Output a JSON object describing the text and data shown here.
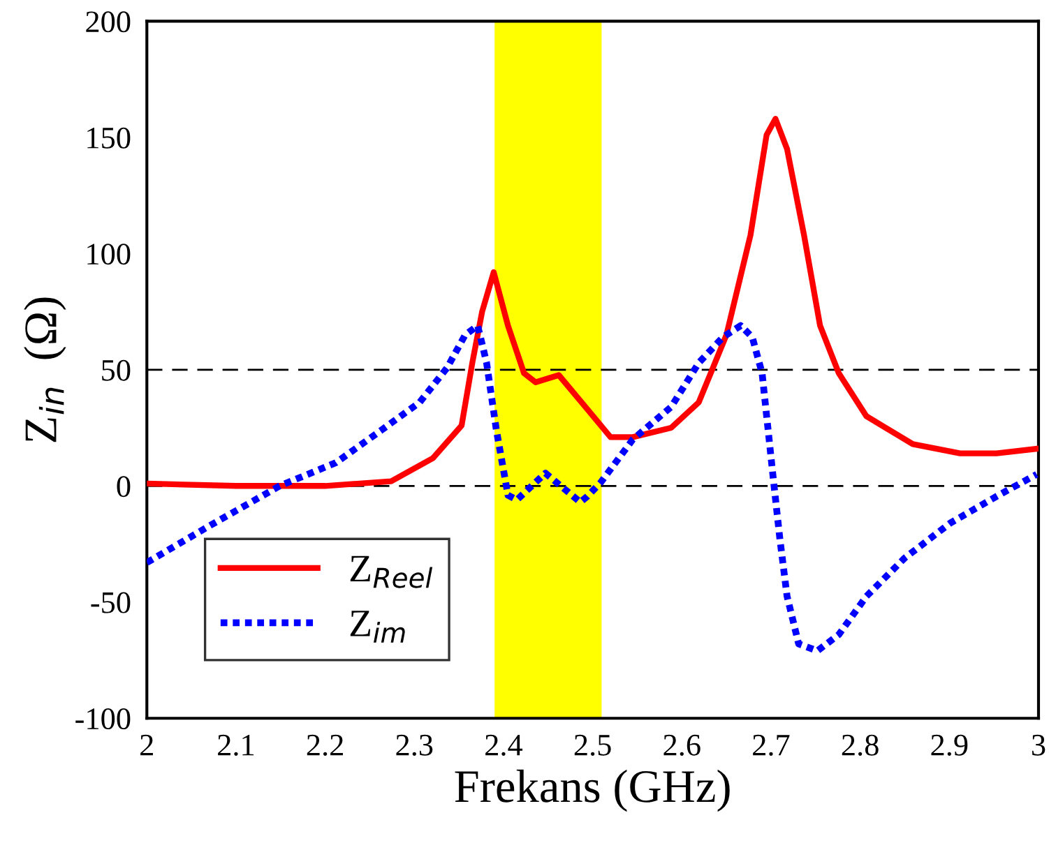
{
  "chart_data": {
    "type": "line",
    "xlabel": "Frekans (GHz)",
    "ylabel": "Z$_{in}$  (Ω)",
    "xlim": [
      2,
      3
    ],
    "xticks": [
      2,
      2.1,
      2.2,
      2.3,
      2.4,
      2.5,
      2.6,
      2.7,
      2.8,
      2.9,
      3
    ],
    "ylim": [
      -100,
      200
    ],
    "yticks": [
      -100,
      -50,
      0,
      50,
      100,
      150,
      200
    ],
    "grid": false,
    "legend": "bottom left",
    "marker": "none",
    "series": [
      {
        "name": "Z$_{Reel}$",
        "color": "#ff0000",
        "line_style": "solid",
        "x": [
          2.0,
          2.1,
          2.2,
          2.274,
          2.321,
          2.353,
          2.365,
          2.376,
          2.389,
          2.405,
          2.423,
          2.436,
          2.462,
          2.494,
          2.52,
          2.545,
          2.588,
          2.619,
          2.65,
          2.677,
          2.695,
          2.705,
          2.718,
          2.737,
          2.755,
          2.776,
          2.807,
          2.859,
          2.912,
          2.953,
          2.998
        ],
        "values": [
          1,
          0,
          0,
          2,
          12,
          26,
          53,
          75,
          92,
          69,
          48.5,
          44.6,
          47.7,
          33,
          21,
          21,
          25,
          36,
          65,
          108,
          151,
          158,
          145,
          108,
          69,
          48.5,
          30,
          18,
          14,
          14,
          16
        ]
      },
      {
        "name": "Z$_{im}$",
        "color": "#0000ff",
        "line_style": "dotted",
        "x": [
          2.0,
          2.071,
          2.149,
          2.212,
          2.263,
          2.306,
          2.337,
          2.357,
          2.371,
          2.381,
          2.392,
          2.405,
          2.415,
          2.447,
          2.486,
          2.494,
          2.509,
          2.545,
          2.588,
          2.619,
          2.646,
          2.666,
          2.679,
          2.69,
          2.703,
          2.71,
          2.718,
          2.731,
          2.752,
          2.776,
          2.807,
          2.85,
          2.901,
          2.953,
          2.998
        ],
        "values": [
          -33,
          -17,
          0,
          10,
          24,
          36,
          51,
          65,
          69,
          53,
          24,
          -4,
          -6,
          5.5,
          -7,
          -4.5,
          1.5,
          20,
          34,
          53,
          64,
          69,
          64,
          48.5,
          1.5,
          -23,
          -47.5,
          -68,
          -71,
          -64,
          -47.5,
          -31,
          -16,
          -4.5,
          5
        ]
      }
    ],
    "ref_lines": [
      {
        "axis": "y",
        "value": 0,
        "color": "#000000",
        "line_style": "dashed"
      },
      {
        "axis": "y",
        "value": 50,
        "color": "#000000",
        "line_style": "dashed"
      }
    ],
    "bands": [
      {
        "axis": "x",
        "from": 2.39,
        "to": 2.51,
        "color": "#ffff00"
      }
    ]
  }
}
